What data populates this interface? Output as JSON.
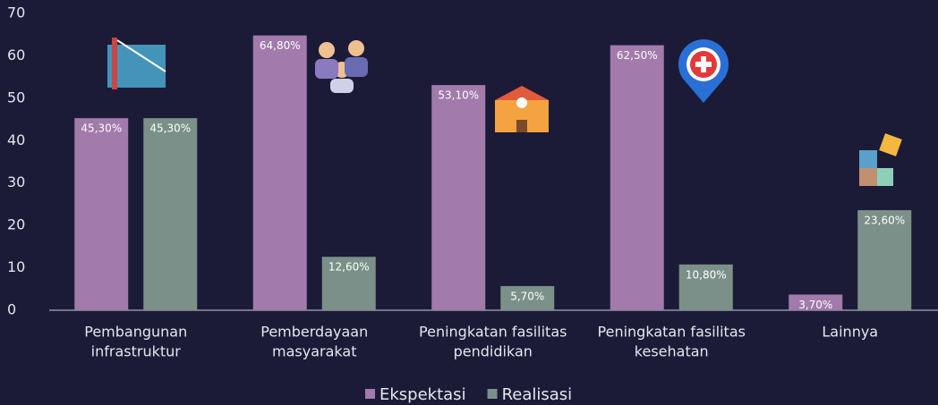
{
  "chart_data": {
    "type": "bar",
    "categories": [
      [
        "Pembangunan",
        "infrastruktur"
      ],
      [
        "Pemberdayaan",
        "masyarakat"
      ],
      [
        "Peningkatan fasilitas",
        "pendidikan"
      ],
      [
        "Peningkatan fasilitas",
        "kesehatan"
      ],
      [
        "Lainnya"
      ]
    ],
    "series": [
      {
        "name": "Ekspektasi",
        "color": "#a27aab",
        "values": [
          45.3,
          64.8,
          53.1,
          62.5,
          3.7
        ],
        "value_labels": [
          "45,30%",
          "64,80%",
          "53,10%",
          "62,50%",
          "3,70%"
        ]
      },
      {
        "name": "Realisasi",
        "color": "#7a9088",
        "values": [
          45.3,
          12.6,
          5.7,
          10.8,
          23.6
        ],
        "value_labels": [
          "45,30%",
          "12,60%",
          "5,70%",
          "10,80%",
          "23,60%"
        ]
      }
    ],
    "ylim": [
      0,
      70
    ],
    "yticks": [
      0,
      10,
      20,
      30,
      40,
      50,
      60,
      70
    ],
    "grid": false,
    "legend": "bottom"
  }
}
